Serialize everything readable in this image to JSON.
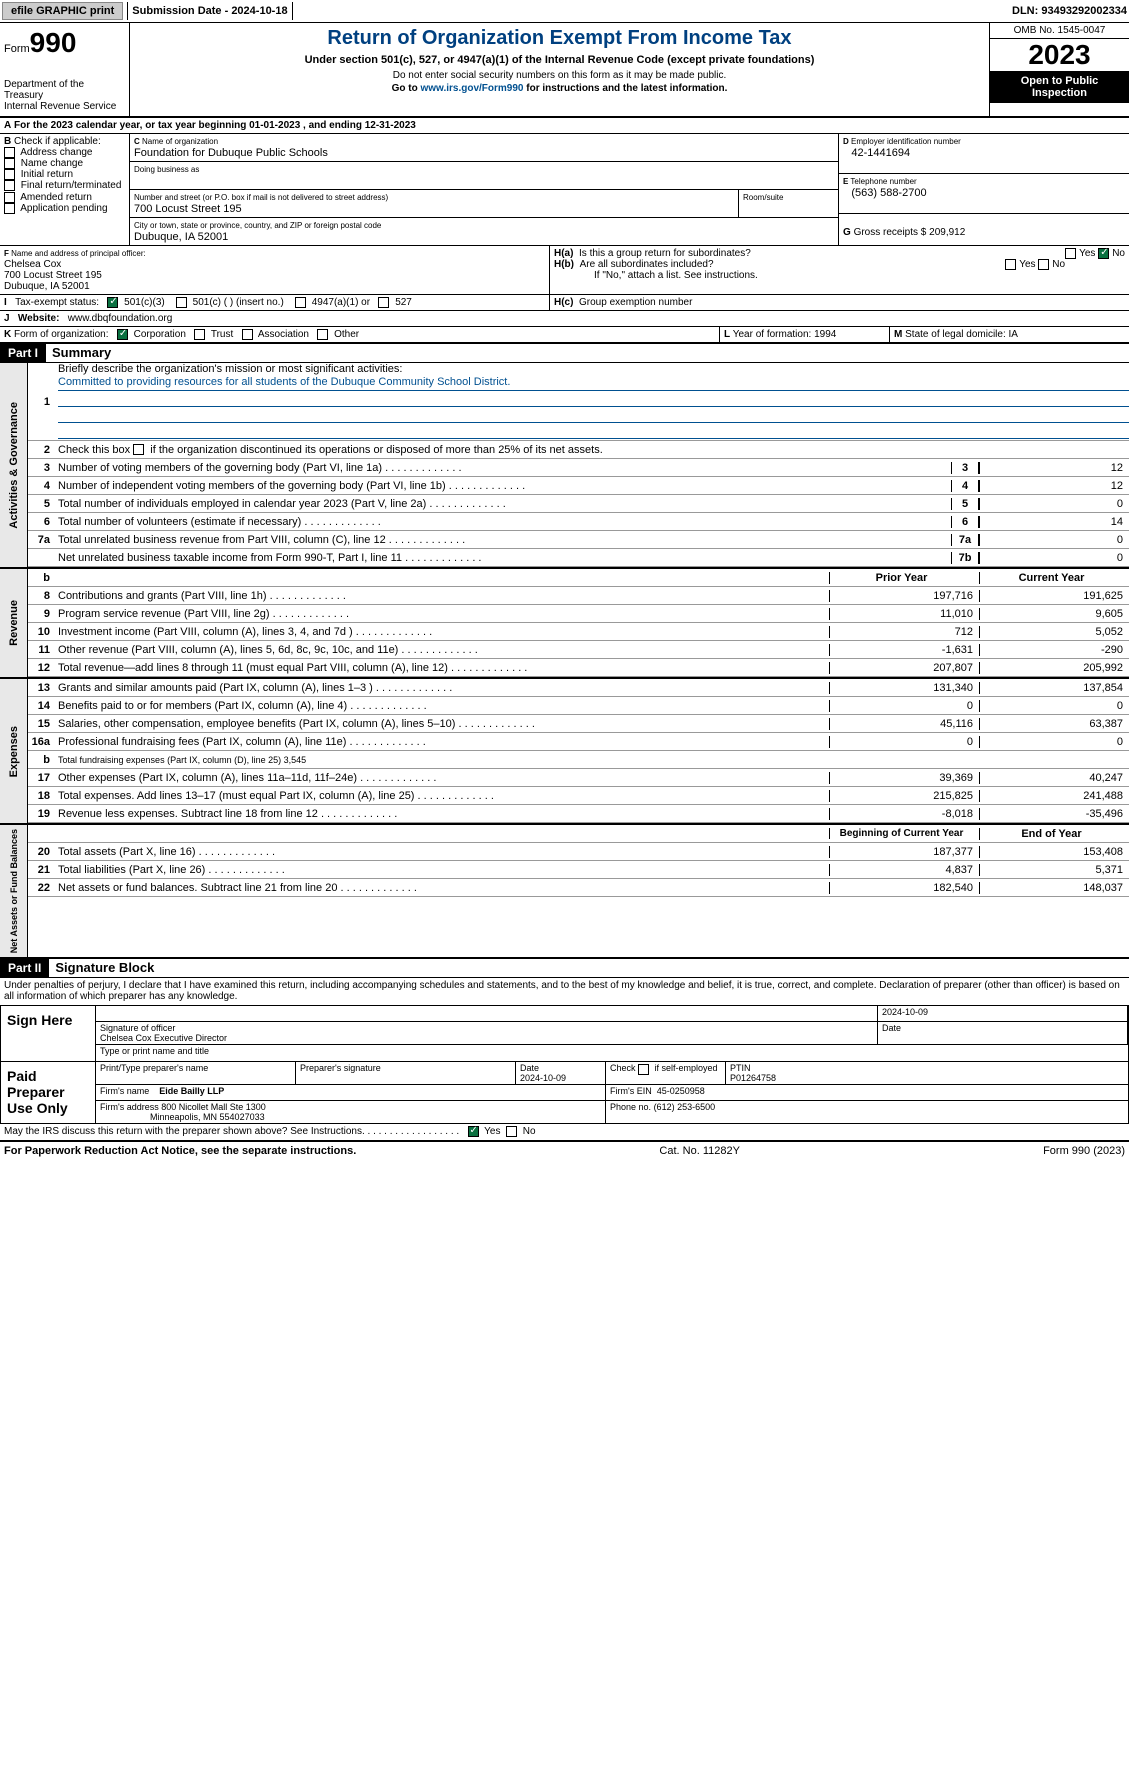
{
  "topbar": {
    "efile": "efile GRAPHIC print",
    "sub": "Submission Date - 2024-10-18",
    "dln": "DLN: 93493292002334"
  },
  "hdr": {
    "form_label": "Form",
    "form_num": "990",
    "dept": "Department of the Treasury\nInternal Revenue Service",
    "title": "Return of Organization Exempt From Income Tax",
    "sub1": "Under section 501(c), 527, or 4947(a)(1) of the Internal Revenue Code (except private foundations)",
    "sub2": "Do not enter social security numbers on this form as it may be made public.",
    "sub3_pre": "Go to ",
    "sub3_link": "www.irs.gov/Form990",
    "sub3_post": " for instructions and the latest information.",
    "omb": "OMB No. 1545-0047",
    "year": "2023",
    "open": "Open to Public Inspection"
  },
  "A": {
    "text": "For the 2023 calendar year, or tax year beginning 01-01-2023    , and ending 12-31-2023"
  },
  "B": {
    "label": "Check if applicable:",
    "opts": [
      "Address change",
      "Name change",
      "Initial return",
      "Final return/terminated",
      "Amended return",
      "Application pending"
    ]
  },
  "C": {
    "name_lbl": "Name of organization",
    "name": "Foundation for Dubuque Public Schools",
    "dba_lbl": "Doing business as",
    "dba": "",
    "addr_lbl": "Number and street (or P.O. box if mail is not delivered to street address)",
    "addr": "700 Locust Street 195",
    "room_lbl": "Room/suite",
    "city_lbl": "City or town, state or province, country, and ZIP or foreign postal code",
    "city": "Dubuque, IA  52001"
  },
  "D": {
    "lbl": "Employer identification number",
    "val": "42-1441694"
  },
  "E": {
    "lbl": "Telephone number",
    "val": "(563) 588-2700"
  },
  "G": {
    "lbl": "Gross receipts $",
    "val": "209,912"
  },
  "F": {
    "lbl": "Name and address of principal officer:",
    "name": "Chelsea Cox",
    "addr1": "700 Locust Street 195",
    "addr2": "Dubuque, IA  52001"
  },
  "H": {
    "a": "Is this a group return for subordinates?",
    "b": "Are all subordinates included?",
    "b_note": "If \"No,\" attach a list. See instructions.",
    "c": "Group exemption number",
    "yes": "Yes",
    "no": "No"
  },
  "I": {
    "lbl": "Tax-exempt status:",
    "o1": "501(c)(3)",
    "o2": "501(c) (  ) (insert no.)",
    "o3": "4947(a)(1) or",
    "o4": "527"
  },
  "J": {
    "lbl": "Website:",
    "val": "www.dbqfoundation.org"
  },
  "K": {
    "lbl": "Form of organization:",
    "o1": "Corporation",
    "o2": "Trust",
    "o3": "Association",
    "o4": "Other"
  },
  "L": {
    "lbl": "Year of formation:",
    "val": "1994"
  },
  "M": {
    "lbl": "State of legal domicile:",
    "val": "IA"
  },
  "part1": {
    "hdr": "Part I",
    "title": "Summary"
  },
  "gov": {
    "q1": "Briefly describe the organization's mission or most significant activities:",
    "q1_ans": "Committed to providing resources for all students of the Dubuque Community School District.",
    "q2": "Check this box          if the organization discontinued its operations or disposed of more than 25% of its net assets.",
    "vlabel": "Activities & Governance",
    "lines": [
      {
        "n": "3",
        "d": "Number of voting members of the governing body (Part VI, line 1a)",
        "bx": "3",
        "v": "12"
      },
      {
        "n": "4",
        "d": "Number of independent voting members of the governing body (Part VI, line 1b)",
        "bx": "4",
        "v": "12"
      },
      {
        "n": "5",
        "d": "Total number of individuals employed in calendar year 2023 (Part V, line 2a)",
        "bx": "5",
        "v": "0"
      },
      {
        "n": "6",
        "d": "Total number of volunteers (estimate if necessary)",
        "bx": "6",
        "v": "14"
      },
      {
        "n": "7a",
        "d": "Total unrelated business revenue from Part VIII, column (C), line 12",
        "bx": "7a",
        "v": "0"
      },
      {
        "n": "",
        "d": "Net unrelated business taxable income from Form 990-T, Part I, line 11",
        "bx": "7b",
        "v": "0"
      }
    ]
  },
  "rev": {
    "vlabel": "Revenue",
    "h1": "Prior Year",
    "h2": "Current Year",
    "lines": [
      {
        "n": "8",
        "d": "Contributions and grants (Part VIII, line 1h)",
        "v1": "197,716",
        "v2": "191,625"
      },
      {
        "n": "9",
        "d": "Program service revenue (Part VIII, line 2g)",
        "v1": "11,010",
        "v2": "9,605"
      },
      {
        "n": "10",
        "d": "Investment income (Part VIII, column (A), lines 3, 4, and 7d )",
        "v1": "712",
        "v2": "5,052"
      },
      {
        "n": "11",
        "d": "Other revenue (Part VIII, column (A), lines 5, 6d, 8c, 9c, 10c, and 11e)",
        "v1": "-1,631",
        "v2": "-290"
      },
      {
        "n": "12",
        "d": "Total revenue—add lines 8 through 11 (must equal Part VIII, column (A), line 12)",
        "v1": "207,807",
        "v2": "205,992"
      }
    ]
  },
  "exp": {
    "vlabel": "Expenses",
    "lines": [
      {
        "n": "13",
        "d": "Grants and similar amounts paid (Part IX, column (A), lines 1–3 )",
        "v1": "131,340",
        "v2": "137,854"
      },
      {
        "n": "14",
        "d": "Benefits paid to or for members (Part IX, column (A), line 4)",
        "v1": "0",
        "v2": "0"
      },
      {
        "n": "15",
        "d": "Salaries, other compensation, employee benefits (Part IX, column (A), lines 5–10)",
        "v1": "45,116",
        "v2": "63,387"
      },
      {
        "n": "16a",
        "d": "Professional fundraising fees (Part IX, column (A), line 11e)",
        "v1": "0",
        "v2": "0"
      },
      {
        "n": "b",
        "d": "Total fundraising expenses (Part IX, column (D), line 25) 3,545",
        "shade": true
      },
      {
        "n": "17",
        "d": "Other expenses (Part IX, column (A), lines 11a–11d, 11f–24e)",
        "v1": "39,369",
        "v2": "40,247"
      },
      {
        "n": "18",
        "d": "Total expenses. Add lines 13–17 (must equal Part IX, column (A), line 25)",
        "v1": "215,825",
        "v2": "241,488"
      },
      {
        "n": "19",
        "d": "Revenue less expenses. Subtract line 18 from line 12",
        "v1": "-8,018",
        "v2": "-35,496"
      }
    ]
  },
  "net": {
    "vlabel": "Net Assets or Fund Balances",
    "h1": "Beginning of Current Year",
    "h2": "End of Year",
    "lines": [
      {
        "n": "20",
        "d": "Total assets (Part X, line 16)",
        "v1": "187,377",
        "v2": "153,408"
      },
      {
        "n": "21",
        "d": "Total liabilities (Part X, line 26)",
        "v1": "4,837",
        "v2": "5,371"
      },
      {
        "n": "22",
        "d": "Net assets or fund balances. Subtract line 21 from line 20",
        "v1": "182,540",
        "v2": "148,037"
      }
    ]
  },
  "part2": {
    "hdr": "Part II",
    "title": "Signature Block",
    "decl": "Under penalties of perjury, I declare that I have examined this return, including accompanying schedules and statements, and to the best of my knowledge and belief, it is true, correct, and complete. Declaration of preparer (other than officer) is based on all information of which preparer has any knowledge."
  },
  "sign": {
    "here": "Sign Here",
    "sig_lbl": "Signature of officer",
    "date_lbl": "Date",
    "date": "2024-10-09",
    "name": "Chelsea Cox  Executive Director",
    "name_lbl": "Type or print name and title"
  },
  "paid": {
    "lbl": "Paid Preparer Use Only",
    "c1": "Print/Type preparer's name",
    "c2": "Preparer's signature",
    "c3_lbl": "Date",
    "c3": "2024-10-09",
    "c4": "Check         if self-employed",
    "c5_lbl": "PTIN",
    "c5": "P01264758",
    "firm_lbl": "Firm's name",
    "firm": "Eide Bailly LLP",
    "ein_lbl": "Firm's EIN",
    "ein": "45-0250958",
    "faddr_lbl": "Firm's address",
    "faddr1": "800 Nicollet Mall Ste 1300",
    "faddr2": "Minneapolis, MN  554027033",
    "phone_lbl": "Phone no.",
    "phone": "(612) 253-6500"
  },
  "discuss": "May the IRS discuss this return with the preparer shown above? See Instructions.",
  "footer": {
    "l": "For Paperwork Reduction Act Notice, see the separate instructions.",
    "c": "Cat. No. 11282Y",
    "r": "Form 990 (2023)"
  }
}
